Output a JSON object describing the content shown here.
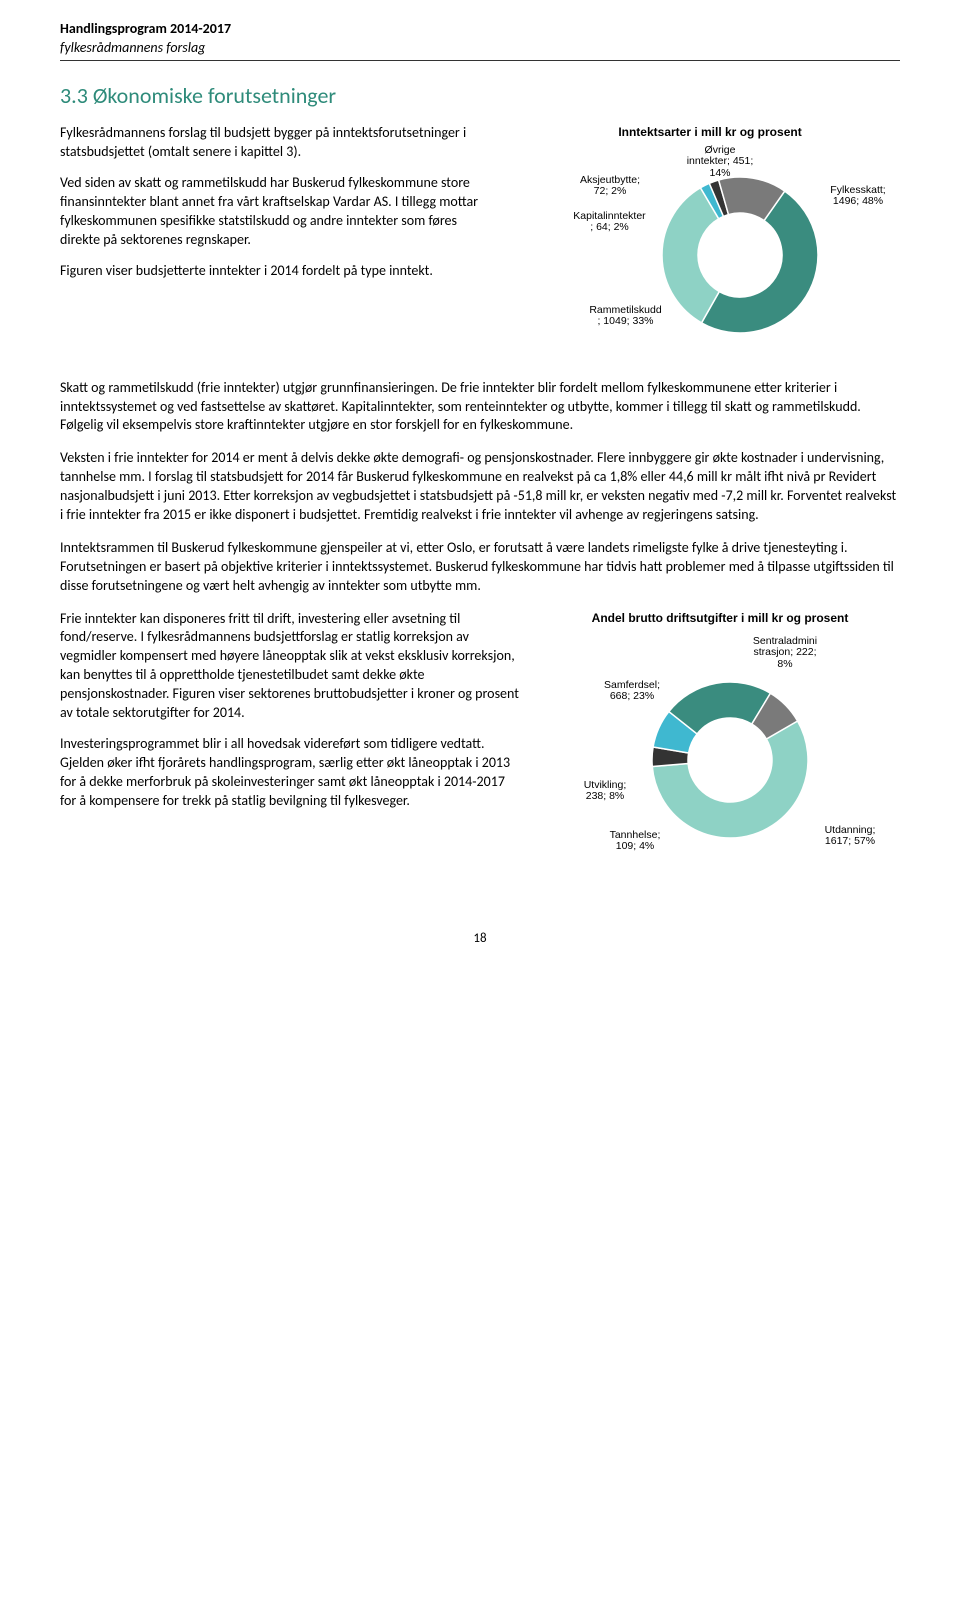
{
  "header": {
    "line1": "Handlingsprogram 2014-2017",
    "line2": "fylkesrådmannens forslag"
  },
  "section_title": "3.3  Økonomiske forutsetninger",
  "intro": {
    "p1": "Fylkesrådmannens forslag til budsjett bygger på inntektsforutsetninger i statsbudsjettet (omtalt senere i kapittel 3).",
    "p2": "Ved siden av skatt og rammetilskudd har Buskerud fylkeskommune store finansinntekter blant annet fra vårt kraftselskap Vardar AS. I tillegg mottar fylkeskommunen spesifikke statstilskudd og andre inntekter som føres direkte på sektorenes regnskaper.",
    "p3": "Figuren viser budsjetterte inntekter i 2014 fordelt på type inntekt."
  },
  "donut1": {
    "title": "Inntektsarter i mill kr og prosent",
    "labels": {
      "ovrige": "Øvrige\ninntekter; 451;\n14%",
      "aksje": "Aksjeutbytte;\n72; 2%",
      "kapital": "Kapitalinntekter\n; 64; 2%",
      "ramme": "Rammetilskudd\n; 1049; 33%",
      "fylkes": "Fylkesskatt;\n1496; 48%"
    },
    "slices": [
      {
        "name": "Fylkesskatt",
        "value": 1496,
        "pct": 48,
        "color": "#3a8c7f"
      },
      {
        "name": "Rammetilskudd",
        "value": 1049,
        "pct": 33,
        "color": "#8ed2c5"
      },
      {
        "name": "Kapitalinntekter",
        "value": 64,
        "pct": 2,
        "color": "#3fb8d0"
      },
      {
        "name": "Aksjeutbytte",
        "value": 72,
        "pct": 2,
        "color": "#333333"
      },
      {
        "name": "Øvrige inntekter",
        "value": 451,
        "pct": 14,
        "color": "#7a7a7a"
      }
    ],
    "outer_radius": 78,
    "inner_radius": 42,
    "start_angle_deg": -55
  },
  "body": {
    "p1": "Skatt og rammetilskudd (frie inntekter) utgjør grunnfinansieringen. De frie inntekter blir fordelt mellom fylkeskommunene etter kriterier i inntektssystemet og ved fastsettelse av skattøret. Kapitalinntekter, som renteinntekter og utbytte, kommer i tillegg til skatt og rammetilskudd. Følgelig vil eksempelvis store kraftinntekter utgjøre en stor forskjell for en fylkeskommune.",
    "p2": "Veksten i frie inntekter for 2014 er ment å delvis dekke økte demografi- og pensjonskostnader. Flere innbyggere gir økte kostnader i undervisning, tannhelse mm. I forslag til statsbudsjett for 2014 får Buskerud fylkeskommune en realvekst på ca 1,8% eller 44,6 mill kr målt ifht nivå pr Revidert nasjonalbudsjett i juni 2013. Etter korreksjon av vegbudsjettet i statsbudsjett på -51,8 mill kr, er veksten negativ med -7,2 mill kr. Forventet realvekst i frie inntekter fra 2015 er ikke disponert i budsjettet. Fremtidig realvekst i frie inntekter vil avhenge av regjeringens satsing.",
    "p3": "Inntektsrammen til Buskerud fylkeskommune gjenspeiler at vi, etter Oslo, er forutsatt å være landets rimeligste fylke å drive tjenesteyting i. Forutsetningen er basert på objektive kriterier i inntektssystemet. Buskerud fylkeskommune har tidvis hatt problemer med å tilpasse utgiftssiden til disse forutsetningene og vært helt avhengig av inntekter som utbytte mm."
  },
  "bottom": {
    "p1": "Frie inntekter kan disponeres fritt til drift, investering eller avsetning til fond/reserve. I fylkesrådmannens budsjettforslag er statlig korreksjon av vegmidler kompensert med høyere låneopptak slik at vekst eksklusiv korreksjon, kan benyttes til å opprettholde tjenestetilbudet samt dekke økte pensjonskostnader. Figuren viser sektorenes bruttobudsjetter i kroner og prosent av totale sektorutgifter for 2014.",
    "p2": "Investeringsprogrammet blir i all hovedsak videreført som tidligere vedtatt. Gjelden øker ifht fjorårets handlingsprogram, særlig etter økt låneopptak i 2013 for å dekke merforbruk på skoleinvesteringer samt økt låneopptak i 2014-2017 for å kompensere for trekk på statlig bevilgning til fylkesveger."
  },
  "donut2": {
    "title": "Andel brutto driftsutgifter i mill kr og prosent",
    "labels": {
      "sentral": "Sentraladmini\nstrasjon; 222;\n8%",
      "samferd": "Samferdsel;\n668; 23%",
      "utvik": "Utvikling;\n238; 8%",
      "tann": "Tannhelse;\n109; 4%",
      "utdann": "Utdanning;\n1617; 57%"
    },
    "slices": [
      {
        "name": "Utdanning",
        "value": 1617,
        "pct": 57,
        "color": "#8ed2c5"
      },
      {
        "name": "Tannhelse",
        "value": 109,
        "pct": 4,
        "color": "#333333"
      },
      {
        "name": "Utvikling",
        "value": 238,
        "pct": 8,
        "color": "#3fb8d0"
      },
      {
        "name": "Samferdsel",
        "value": 668,
        "pct": 23,
        "color": "#3a8c7f"
      },
      {
        "name": "Sentraladministrasjon",
        "value": 222,
        "pct": 8,
        "color": "#7a7a7a"
      }
    ],
    "outer_radius": 78,
    "inner_radius": 42,
    "start_angle_deg": -30
  },
  "page_number": "18"
}
